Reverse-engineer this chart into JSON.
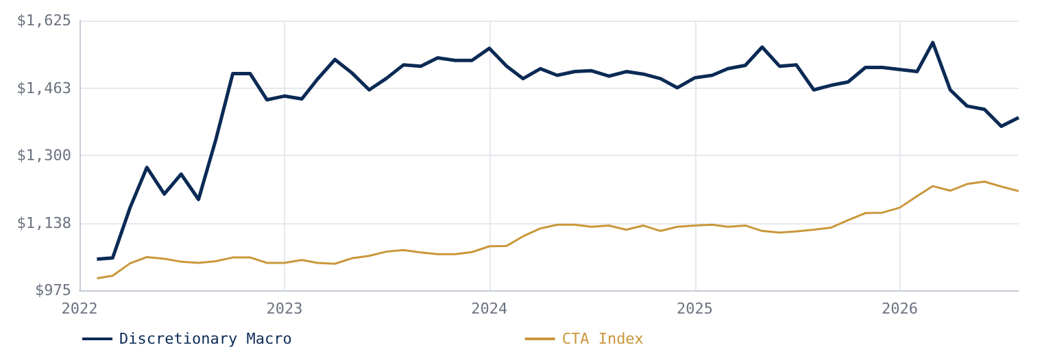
{
  "chart_data": {
    "type": "line",
    "x": [
      "2022-02",
      "2022-03",
      "2022-04",
      "2022-05",
      "2022-06",
      "2022-07",
      "2022-08",
      "2022-09",
      "2022-10",
      "2022-11",
      "2022-12",
      "2023-01",
      "2023-02",
      "2023-03",
      "2023-04",
      "2023-05",
      "2023-06",
      "2023-07",
      "2023-08",
      "2023-09",
      "2023-10",
      "2023-11",
      "2023-12",
      "2024-01",
      "2024-02",
      "2024-03",
      "2024-04",
      "2024-05",
      "2024-06",
      "2024-07",
      "2024-08",
      "2024-09",
      "2024-10",
      "2024-11",
      "2024-12",
      "2025-01",
      "2025-02",
      "2025-03",
      "2025-04",
      "2025-05",
      "2025-06",
      "2025-07",
      "2025-08",
      "2025-09",
      "2025-10",
      "2025-11",
      "2025-12",
      "2026-01",
      "2026-02",
      "2026-03",
      "2026-04",
      "2026-05",
      "2026-06",
      "2026-07",
      "2026-08"
    ],
    "series": [
      {
        "name": "Discretionary Macro",
        "color": "#0b2a55",
        "values": [
          1050,
          1053,
          1174,
          1271,
          1207,
          1255,
          1194,
          1339,
          1497,
          1497,
          1434,
          1443,
          1436,
          1484,
          1531,
          1499,
          1458,
          1485,
          1518,
          1515,
          1535,
          1529,
          1529,
          1558,
          1515,
          1485,
          1509,
          1493,
          1502,
          1504,
          1491,
          1502,
          1496,
          1485,
          1463,
          1487,
          1493,
          1509,
          1517,
          1561,
          1515,
          1518,
          1458,
          1469,
          1477,
          1512,
          1512,
          1507,
          1502,
          1572,
          1458,
          1419,
          1411,
          1370,
          1391
        ]
      },
      {
        "name": "CTA Index",
        "color": "#c9973a",
        "values": [
          1004,
          1010,
          1040,
          1055,
          1051,
          1044,
          1041,
          1045,
          1054,
          1054,
          1041,
          1041,
          1048,
          1041,
          1039,
          1052,
          1058,
          1068,
          1072,
          1066,
          1062,
          1062,
          1067,
          1081,
          1082,
          1105,
          1124,
          1133,
          1133,
          1128,
          1131,
          1121,
          1131,
          1118,
          1128,
          1131,
          1133,
          1128,
          1131,
          1118,
          1114,
          1117,
          1121,
          1126,
          1144,
          1161,
          1162,
          1174,
          1202,
          1226,
          1215,
          1231,
          1237,
          1225,
          1214
        ]
      }
    ],
    "xlim": [
      "2022-01",
      "2026-08"
    ],
    "xticks": [
      "2022",
      "2023",
      "2024",
      "2025",
      "2026"
    ],
    "ylim": [
      975,
      1625
    ],
    "yticks": [
      {
        "value": 975,
        "label": "$975"
      },
      {
        "value": 1137.5,
        "label": "$1,138"
      },
      {
        "value": 1300,
        "label": "$1,300"
      },
      {
        "value": 1462.5,
        "label": "$1,463"
      },
      {
        "value": 1625,
        "label": "$1,625"
      }
    ],
    "grid": true,
    "legend": "bottom",
    "marker": "none",
    "line_style": "solid"
  }
}
